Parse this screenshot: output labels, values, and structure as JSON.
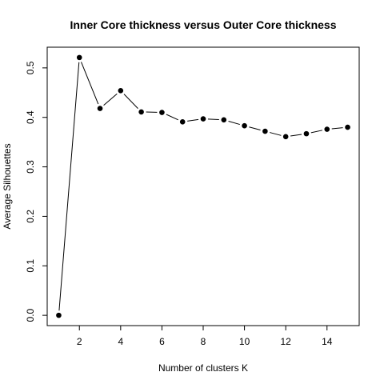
{
  "chart_data": {
    "type": "line",
    "title": "Inner Core thickness versus Outer Core thickness",
    "xlabel": "Number of clusters K",
    "ylabel": "Average Silhouettes",
    "x": [
      1,
      2,
      3,
      4,
      5,
      6,
      7,
      8,
      9,
      10,
      11,
      12,
      13,
      14,
      15
    ],
    "series": [
      {
        "values": [
          0.0,
          0.521,
          0.418,
          0.454,
          0.411,
          0.41,
          0.391,
          0.397,
          0.395,
          0.383,
          0.372,
          0.361,
          0.367,
          0.376,
          0.38
        ]
      }
    ],
    "xlim": [
      0.44,
      15.56
    ],
    "ylim": [
      -0.0208,
      0.5418
    ],
    "xticks": [
      2,
      4,
      6,
      8,
      10,
      12,
      14
    ],
    "xtick_labels": [
      "2",
      "4",
      "6",
      "8",
      "10",
      "12",
      "14"
    ],
    "yticks": [
      0.0,
      0.1,
      0.2,
      0.3,
      0.4,
      0.5
    ],
    "ytick_labels": [
      "0.0",
      "0.1",
      "0.2",
      "0.3",
      "0.4",
      "0.5"
    ],
    "grid": false,
    "legend": "none",
    "colors": {
      "line": "#000000",
      "point": "#000000",
      "frame": "#000000"
    }
  }
}
